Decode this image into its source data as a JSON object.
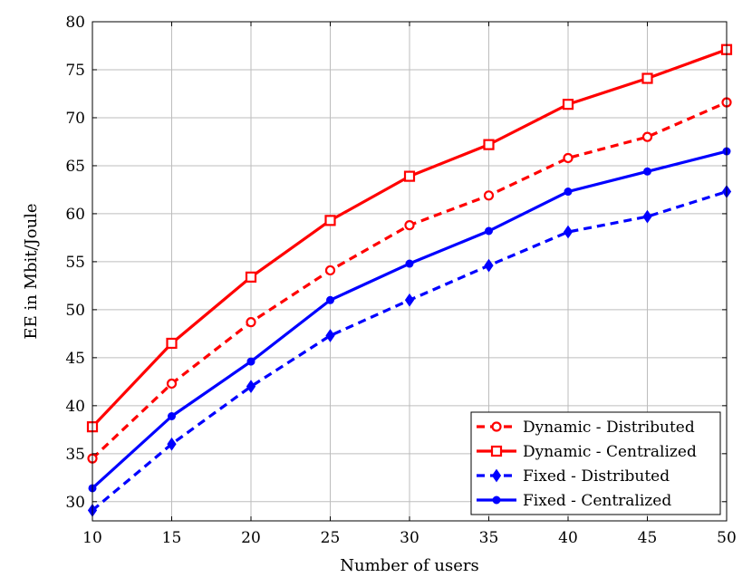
{
  "chart_data": {
    "type": "line",
    "title": "",
    "xlabel": "Number of users",
    "ylabel": "EE in Mbit/Joule",
    "xlim": [
      10,
      50
    ],
    "ylim": [
      28,
      80
    ],
    "x": [
      10,
      15,
      20,
      25,
      30,
      35,
      40,
      45,
      50
    ],
    "xticks": [
      10,
      15,
      20,
      25,
      30,
      35,
      40,
      45,
      50
    ],
    "yticks": [
      30,
      35,
      40,
      45,
      50,
      55,
      60,
      65,
      70,
      75,
      80
    ],
    "grid": true,
    "legend_position": "bottom-right",
    "series": [
      {
        "name": "Dynamic - Distributed",
        "color": "#ff0000",
        "line_style": "dashed",
        "marker": "circle-open",
        "values": [
          34.5,
          42.3,
          48.7,
          54.1,
          58.8,
          61.9,
          65.8,
          68.0,
          71.6
        ]
      },
      {
        "name": "Dynamic - Centralized",
        "color": "#ff0000",
        "line_style": "solid",
        "marker": "square-open",
        "values": [
          37.8,
          46.5,
          53.4,
          59.3,
          63.9,
          67.2,
          71.4,
          74.1,
          77.1
        ]
      },
      {
        "name": "Fixed - Distributed",
        "color": "#0000ff",
        "line_style": "dashed",
        "marker": "diamond-filled",
        "values": [
          29.1,
          36.0,
          42.0,
          47.3,
          51.0,
          54.6,
          58.1,
          59.7,
          62.3
        ]
      },
      {
        "name": "Fixed - Centralized",
        "color": "#0000ff",
        "line_style": "solid",
        "marker": "circle-filled",
        "values": [
          31.4,
          38.9,
          44.6,
          51.0,
          54.8,
          58.2,
          62.3,
          64.4,
          66.5
        ]
      }
    ]
  }
}
